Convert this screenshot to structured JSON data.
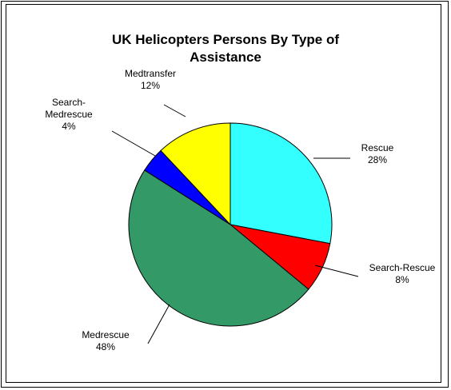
{
  "chart_data": {
    "type": "pie",
    "title_lines": [
      "UK Helicopters Persons By Type of",
      "Assistance"
    ],
    "slices": [
      {
        "label": "Rescue",
        "value": 28,
        "percent_label": "28%",
        "color": "#33FFFF"
      },
      {
        "label": "Search-Rescue",
        "value": 8,
        "percent_label": "8%",
        "color": "#FF0000"
      },
      {
        "label": "Medrescue",
        "value": 48,
        "percent_label": "48%",
        "color": "#339966"
      },
      {
        "label": "Search-Medrescue",
        "value": 4,
        "percent_label": "4%",
        "color": "#0000FF"
      },
      {
        "label": "Medtransfer",
        "value": 12,
        "percent_label": "12%",
        "color": "#FFFF00"
      }
    ],
    "label_lines": {
      "Rescue": [
        "Rescue"
      ],
      "Search-Rescue": [
        "Search-Rescue"
      ],
      "Medrescue": [
        "Medrescue"
      ],
      "Search-Medrescue": [
        "Search-",
        "Medrescue"
      ],
      "Medtransfer": [
        "Medtransfer"
      ]
    },
    "start_angle": "12 o'clock",
    "direction": "clockwise",
    "legend": "none",
    "border_color": "#000000"
  }
}
